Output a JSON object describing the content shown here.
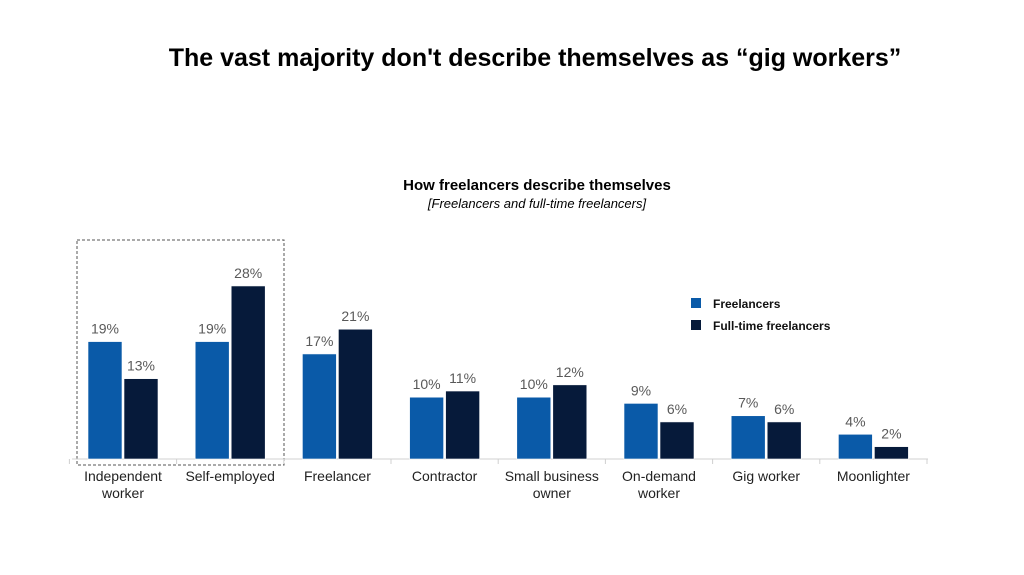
{
  "headline": "The vast majority don't describe themselves as “gig workers”",
  "chart_data": {
    "type": "bar",
    "title": "How freelancers describe themselves",
    "subtitle": "[Freelancers and full-time freelancers]",
    "categories": [
      [
        "Independent",
        "worker"
      ],
      [
        "Self-employed"
      ],
      [
        "Freelancer"
      ],
      [
        "Contractor"
      ],
      [
        "Small business",
        "owner"
      ],
      [
        "On-demand",
        "worker"
      ],
      [
        "Gig worker"
      ],
      [
        "Moonlighter"
      ]
    ],
    "series": [
      {
        "name": "Freelancers",
        "color": "#0a5aa8",
        "values": [
          19,
          19,
          17,
          10,
          10,
          9,
          7,
          4
        ]
      },
      {
        "name": "Full-time freelancers",
        "color": "#061a3a",
        "values": [
          13,
          28,
          21,
          11,
          12,
          6,
          6,
          2
        ]
      }
    ],
    "value_suffix": "%",
    "ylim": [
      0,
      30
    ],
    "grid": false,
    "legend_position": "top-right",
    "highlight": "dashed box around Independent worker and Self-employed"
  }
}
